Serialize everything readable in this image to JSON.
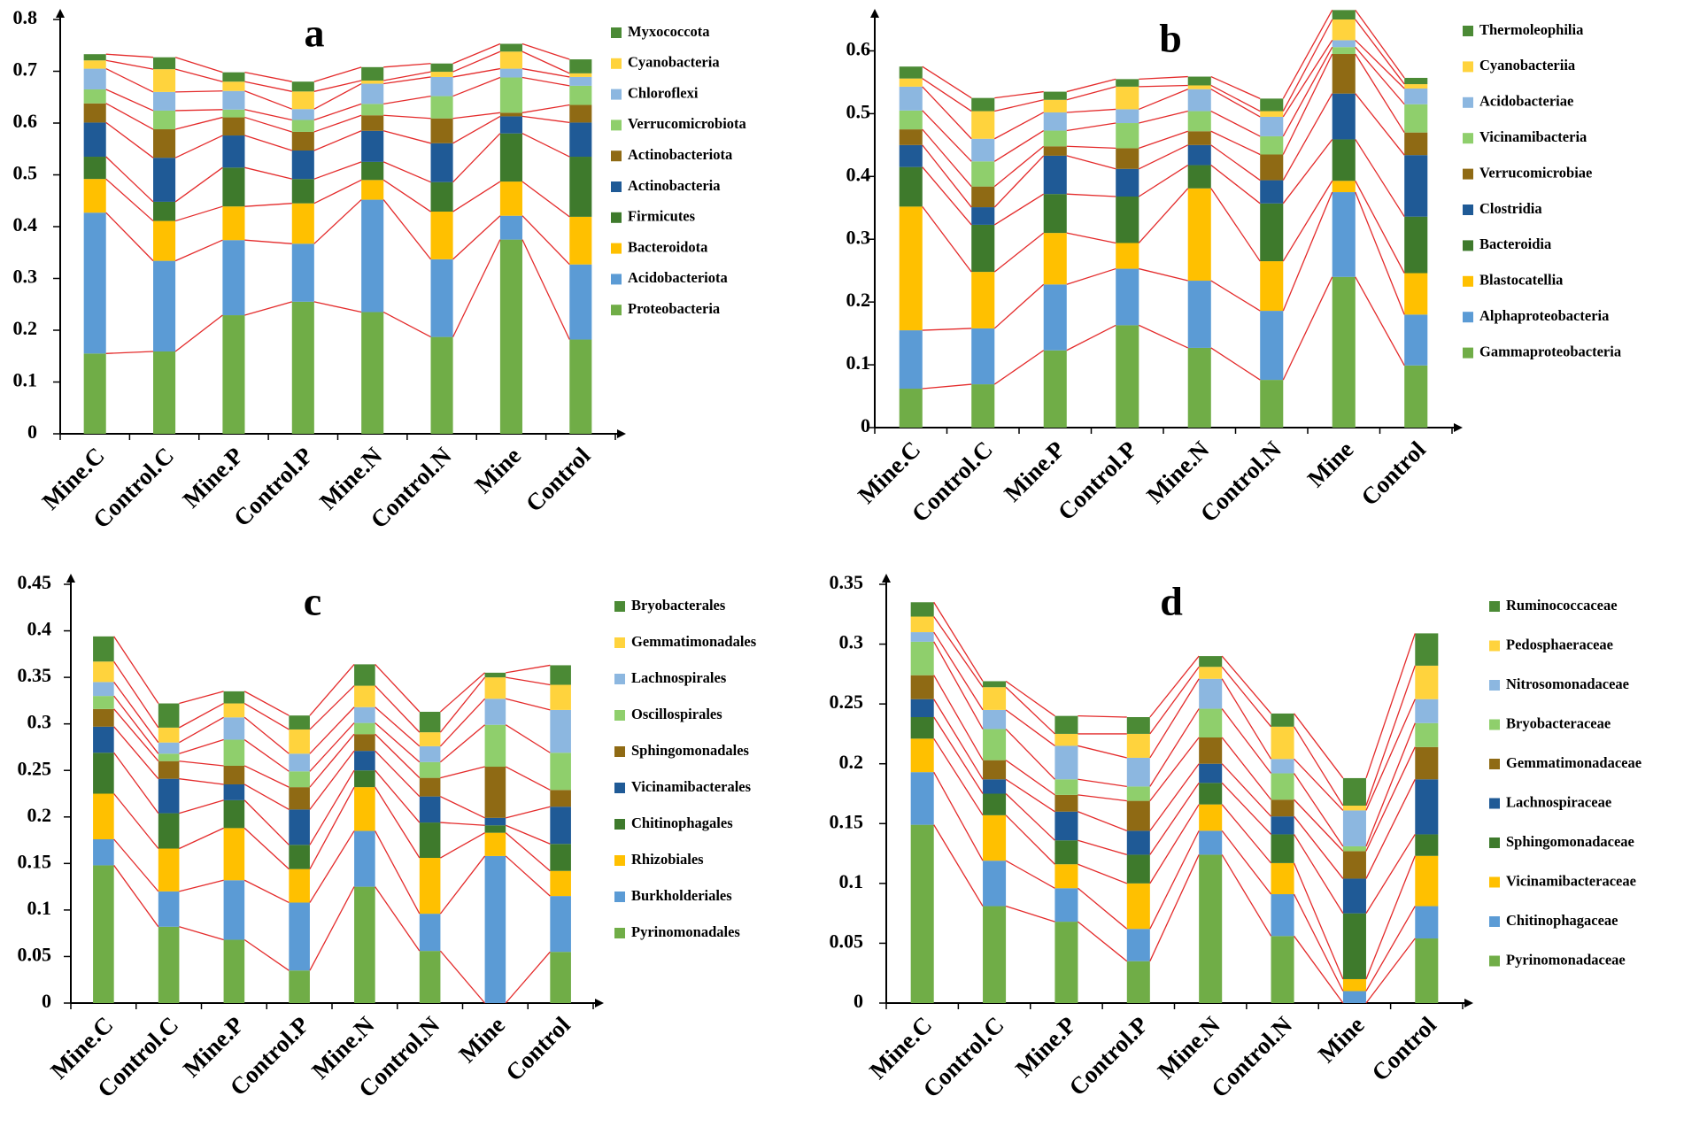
{
  "colors": [
    "#70ad47",
    "#5b9bd5",
    "#ffc000",
    "#3e7a2c",
    "#1f5a96",
    "#8f6a14",
    "#8fcf6c",
    "#8cb7e0",
    "#ffd33d",
    "#4b8a35"
  ],
  "connector_color": "#e42b2b",
  "chart_data": [
    {
      "type": "bar",
      "stacked": true,
      "panel_label": "a",
      "categories": [
        "Mine.C",
        "Control.C",
        "Mine.P",
        "Control.P",
        "Mine.N",
        "Control.N",
        "Mine",
        "Control"
      ],
      "ylim": [
        0,
        0.8
      ],
      "yticks": [
        "0",
        "0.1",
        "0.2",
        "0.3",
        "0.4",
        "0.5",
        "0.6",
        "0.7",
        "0.8"
      ],
      "ytick_values": [
        0,
        0.1,
        0.2,
        0.3,
        0.4,
        0.5,
        0.6,
        0.7,
        0.8
      ],
      "series": [
        {
          "name": "Proteobacteria",
          "values": [
            0.155,
            0.159,
            0.229,
            0.255,
            0.235,
            0.187,
            0.375,
            0.182
          ]
        },
        {
          "name": "Acidobacteriota",
          "values": [
            0.272,
            0.175,
            0.145,
            0.112,
            0.217,
            0.15,
            0.046,
            0.145
          ]
        },
        {
          "name": "Bacteroidota",
          "values": [
            0.065,
            0.077,
            0.065,
            0.078,
            0.038,
            0.092,
            0.066,
            0.092
          ]
        },
        {
          "name": "Firmicutes",
          "values": [
            0.043,
            0.037,
            0.075,
            0.047,
            0.035,
            0.057,
            0.093,
            0.116
          ]
        },
        {
          "name": "Actinobacteria",
          "values": [
            0.066,
            0.085,
            0.062,
            0.055,
            0.06,
            0.075,
            0.033,
            0.066
          ]
        },
        {
          "name": "Actinobacteriota",
          "values": [
            0.037,
            0.055,
            0.035,
            0.036,
            0.03,
            0.048,
            0.007,
            0.034
          ]
        },
        {
          "name": "Verrucomicrobiota",
          "values": [
            0.027,
            0.036,
            0.015,
            0.023,
            0.022,
            0.043,
            0.068,
            0.037
          ]
        },
        {
          "name": "Chloroflexi",
          "values": [
            0.04,
            0.036,
            0.036,
            0.021,
            0.039,
            0.037,
            0.017,
            0.017
          ]
        },
        {
          "name": "Cyanobacteria",
          "values": [
            0.016,
            0.044,
            0.018,
            0.034,
            0.006,
            0.01,
            0.033,
            0.007
          ]
        },
        {
          "name": "Myxococcota",
          "values": [
            0.012,
            0.023,
            0.018,
            0.019,
            0.026,
            0.016,
            0.015,
            0.027
          ]
        }
      ]
    },
    {
      "type": "bar",
      "stacked": true,
      "panel_label": "b",
      "categories": [
        "Mine.C",
        "Control.C",
        "Mine.P",
        "Control.P",
        "Mine.N",
        "Control.N",
        "Mine",
        "Control"
      ],
      "ylim": [
        0,
        0.65
      ],
      "yticks": [
        "0",
        "0.1",
        "0.2",
        "0.3",
        "0.4",
        "0.5",
        "0.6"
      ],
      "ytick_values": [
        0,
        0.1,
        0.2,
        0.3,
        0.4,
        0.5,
        0.6
      ],
      "series": [
        {
          "name": "Gammaproteobacteria",
          "values": [
            0.062,
            0.069,
            0.123,
            0.163,
            0.127,
            0.076,
            0.24,
            0.099
          ]
        },
        {
          "name": "Alphaproteobacteria",
          "values": [
            0.093,
            0.089,
            0.105,
            0.09,
            0.107,
            0.11,
            0.135,
            0.081
          ]
        },
        {
          "name": "Blastocatellia",
          "values": [
            0.197,
            0.09,
            0.082,
            0.041,
            0.147,
            0.079,
            0.018,
            0.066
          ]
        },
        {
          "name": "Bacteroidia",
          "values": [
            0.063,
            0.075,
            0.062,
            0.074,
            0.037,
            0.092,
            0.066,
            0.09
          ]
        },
        {
          "name": "Clostridia",
          "values": [
            0.035,
            0.028,
            0.061,
            0.044,
            0.032,
            0.037,
            0.073,
            0.098
          ]
        },
        {
          "name": "Verrucomicrobiae",
          "values": [
            0.025,
            0.033,
            0.015,
            0.033,
            0.022,
            0.041,
            0.063,
            0.036
          ]
        },
        {
          "name": "Vicinamibacteria",
          "values": [
            0.03,
            0.04,
            0.025,
            0.04,
            0.032,
            0.029,
            0.011,
            0.045
          ]
        },
        {
          "name": "Acidobacteriae",
          "values": [
            0.038,
            0.036,
            0.029,
            0.022,
            0.035,
            0.031,
            0.011,
            0.025
          ]
        },
        {
          "name": "Cyanobacteriia",
          "values": [
            0.013,
            0.044,
            0.02,
            0.036,
            0.006,
            0.009,
            0.033,
            0.007
          ]
        },
        {
          "name": "Thermoleophilia",
          "values": [
            0.019,
            0.021,
            0.013,
            0.012,
            0.014,
            0.02,
            0.015,
            0.01
          ]
        }
      ]
    },
    {
      "type": "bar",
      "stacked": true,
      "panel_label": "c",
      "categories": [
        "Mine.C",
        "Control.C",
        "Mine.P",
        "Control.P",
        "Mine.N",
        "Control.N",
        "Mine",
        "Control"
      ],
      "ylim": [
        0,
        0.45
      ],
      "yticks": [
        "0",
        "0.05",
        "0.1",
        "0.15",
        "0.2",
        "0.25",
        "0.3",
        "0.35",
        "0.4",
        "0.45"
      ],
      "ytick_values": [
        0,
        0.05,
        0.1,
        0.15,
        0.2,
        0.25,
        0.3,
        0.35,
        0.4,
        0.45
      ],
      "series": [
        {
          "name": "Pyrinomonadales",
          "values": [
            0.148,
            0.082,
            0.068,
            0.035,
            0.125,
            0.056,
            0.0,
            0.055
          ]
        },
        {
          "name": "Burkholderiales",
          "values": [
            0.028,
            0.038,
            0.064,
            0.073,
            0.06,
            0.04,
            0.158,
            0.06
          ]
        },
        {
          "name": "Rhizobiales",
          "values": [
            0.049,
            0.046,
            0.056,
            0.036,
            0.047,
            0.06,
            0.025,
            0.027
          ]
        },
        {
          "name": "Chitinophagales",
          "values": [
            0.044,
            0.038,
            0.03,
            0.026,
            0.018,
            0.038,
            0.008,
            0.029
          ]
        },
        {
          "name": "Vicinamibacterales",
          "values": [
            0.028,
            0.037,
            0.017,
            0.038,
            0.021,
            0.028,
            0.008,
            0.04
          ]
        },
        {
          "name": "Sphingomonadales",
          "values": [
            0.019,
            0.019,
            0.02,
            0.024,
            0.018,
            0.02,
            0.055,
            0.018
          ]
        },
        {
          "name": "Oscillospirales",
          "values": [
            0.014,
            0.008,
            0.028,
            0.017,
            0.012,
            0.017,
            0.045,
            0.04
          ]
        },
        {
          "name": "Lachnospirales",
          "values": [
            0.015,
            0.012,
            0.024,
            0.019,
            0.017,
            0.017,
            0.028,
            0.046
          ]
        },
        {
          "name": "Gemmatimonadales",
          "values": [
            0.022,
            0.016,
            0.015,
            0.026,
            0.023,
            0.015,
            0.023,
            0.027
          ]
        },
        {
          "name": "Bryobacterales",
          "values": [
            0.027,
            0.026,
            0.013,
            0.015,
            0.023,
            0.022,
            0.005,
            0.021
          ]
        }
      ]
    },
    {
      "type": "bar",
      "stacked": true,
      "panel_label": "d",
      "categories": [
        "Mine.C",
        "Control.C",
        "Mine.P",
        "Control.P",
        "Mine.N",
        "Control.N",
        "Mine",
        "Control"
      ],
      "ylim": [
        0,
        0.35
      ],
      "yticks": [
        "0",
        "0.05",
        "0.1",
        "0.15",
        "0.2",
        "0.25",
        "0.3",
        "0.35"
      ],
      "ytick_values": [
        0,
        0.05,
        0.1,
        0.15,
        0.2,
        0.25,
        0.3,
        0.35
      ],
      "series": [
        {
          "name": "Pyrinomonadaceae",
          "values": [
            0.149,
            0.081,
            0.068,
            0.035,
            0.124,
            0.056,
            0.0,
            0.054
          ]
        },
        {
          "name": "Chitinophagaceae",
          "values": [
            0.044,
            0.038,
            0.028,
            0.027,
            0.02,
            0.035,
            0.01,
            0.027
          ]
        },
        {
          "name": "Vicinamibacteraceae",
          "values": [
            0.028,
            0.038,
            0.02,
            0.038,
            0.022,
            0.026,
            0.01,
            0.042
          ]
        },
        {
          "name": "Sphingomonadaceae",
          "values": [
            0.018,
            0.018,
            0.02,
            0.024,
            0.018,
            0.024,
            0.055,
            0.018
          ]
        },
        {
          "name": "Lachnospiraceae",
          "values": [
            0.015,
            0.012,
            0.024,
            0.02,
            0.016,
            0.015,
            0.029,
            0.046
          ]
        },
        {
          "name": "Gemmatimonadaceae",
          "values": [
            0.02,
            0.016,
            0.014,
            0.025,
            0.022,
            0.014,
            0.023,
            0.027
          ]
        },
        {
          "name": "Bryobacteraceae",
          "values": [
            0.028,
            0.026,
            0.013,
            0.012,
            0.024,
            0.022,
            0.004,
            0.02
          ]
        },
        {
          "name": "Nitrosomonadaceae",
          "values": [
            0.008,
            0.016,
            0.028,
            0.024,
            0.025,
            0.012,
            0.03,
            0.02
          ]
        },
        {
          "name": "Pedosphaeraceae",
          "values": [
            0.013,
            0.019,
            0.01,
            0.02,
            0.01,
            0.027,
            0.004,
            0.028
          ]
        },
        {
          "name": "Ruminococcaceae",
          "values": [
            0.012,
            0.005,
            0.015,
            0.014,
            0.009,
            0.011,
            0.023,
            0.027
          ]
        }
      ]
    }
  ]
}
